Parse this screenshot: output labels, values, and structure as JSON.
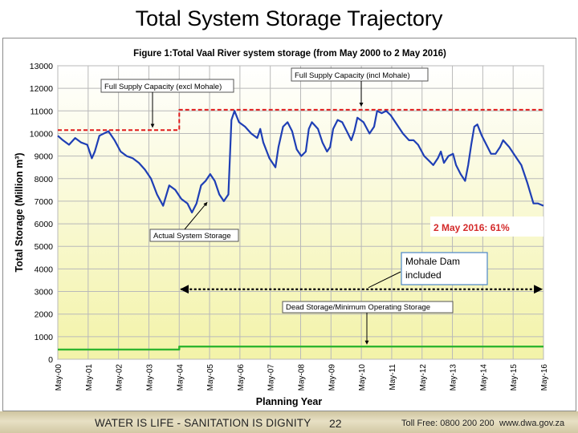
{
  "slide": {
    "title": "Total System Storage Trajectory",
    "footer": {
      "slogan": "WATER IS LIFE - SANITATION IS DIGNITY",
      "page_number": "22",
      "toll_free": "Toll Free: 0800 200 200",
      "website": "www.dwa.gov.za"
    }
  },
  "chart_data": {
    "type": "line",
    "title": "Figure 1:Total Vaal River system storage (from May 2000 to 2 May 2016)",
    "xlabel": "Planning Year",
    "ylabel": "Total  Storage (Million m³)",
    "ylim": [
      0,
      13000
    ],
    "yticks": [
      0,
      1000,
      2000,
      3000,
      4000,
      5000,
      6000,
      7000,
      8000,
      9000,
      10000,
      11000,
      12000,
      13000
    ],
    "xlim": [
      2000.33,
      2016.33
    ],
    "xticks": [
      {
        "x": 2000.33,
        "label": "May-00"
      },
      {
        "x": 2001.33,
        "label": "May-01"
      },
      {
        "x": 2002.33,
        "label": "May-02"
      },
      {
        "x": 2003.33,
        "label": "May-03"
      },
      {
        "x": 2004.33,
        "label": "May-04"
      },
      {
        "x": 2005.33,
        "label": "May-05"
      },
      {
        "x": 2006.33,
        "label": "May-06"
      },
      {
        "x": 2007.33,
        "label": "May-07"
      },
      {
        "x": 2008.33,
        "label": "May-08"
      },
      {
        "x": 2009.33,
        "label": "May-09"
      },
      {
        "x": 2010.33,
        "label": "May-10"
      },
      {
        "x": 2011.33,
        "label": "May-11"
      },
      {
        "x": 2012.33,
        "label": "May-12"
      },
      {
        "x": 2013.33,
        "label": "May-13"
      },
      {
        "x": 2014.33,
        "label": "May-14"
      },
      {
        "x": 2015.33,
        "label": "May-15"
      },
      {
        "x": 2016.33,
        "label": "May-16"
      }
    ],
    "grid": true,
    "colors": {
      "storage": "#1f3fb5",
      "capacity": "#e01b1b",
      "dead": "#2fb52f",
      "background_top": "#ffffff",
      "background_bottom": "#f3f3a8"
    },
    "series": [
      {
        "name": "Actual System Storage",
        "points": [
          [
            2000.33,
            9900
          ],
          [
            2000.5,
            9700
          ],
          [
            2000.7,
            9500
          ],
          [
            2000.9,
            9800
          ],
          [
            2001.1,
            9600
          ],
          [
            2001.3,
            9500
          ],
          [
            2001.45,
            8900
          ],
          [
            2001.55,
            9200
          ],
          [
            2001.7,
            9900
          ],
          [
            2002.0,
            10100
          ],
          [
            2002.2,
            9700
          ],
          [
            2002.4,
            9200
          ],
          [
            2002.6,
            9000
          ],
          [
            2002.8,
            8900
          ],
          [
            2003.0,
            8700
          ],
          [
            2003.2,
            8400
          ],
          [
            2003.4,
            8000
          ],
          [
            2003.6,
            7300
          ],
          [
            2003.8,
            6800
          ],
          [
            2004.0,
            7700
          ],
          [
            2004.2,
            7500
          ],
          [
            2004.4,
            7100
          ],
          [
            2004.6,
            6900
          ],
          [
            2004.75,
            6500
          ],
          [
            2004.9,
            6900
          ],
          [
            2005.05,
            7700
          ],
          [
            2005.2,
            7900
          ],
          [
            2005.35,
            8200
          ],
          [
            2005.5,
            7900
          ],
          [
            2005.65,
            7300
          ],
          [
            2005.8,
            7000
          ],
          [
            2005.95,
            7300
          ],
          [
            2006.05,
            10600
          ],
          [
            2006.15,
            11000
          ],
          [
            2006.3,
            10500
          ],
          [
            2006.5,
            10300
          ],
          [
            2006.7,
            10000
          ],
          [
            2006.9,
            9800
          ],
          [
            2007.0,
            10200
          ],
          [
            2007.1,
            9600
          ],
          [
            2007.3,
            8900
          ],
          [
            2007.5,
            8500
          ],
          [
            2007.6,
            9400
          ],
          [
            2007.75,
            10300
          ],
          [
            2007.9,
            10500
          ],
          [
            2008.05,
            10100
          ],
          [
            2008.2,
            9300
          ],
          [
            2008.35,
            9000
          ],
          [
            2008.5,
            9200
          ],
          [
            2008.6,
            10200
          ],
          [
            2008.7,
            10500
          ],
          [
            2008.9,
            10200
          ],
          [
            2009.05,
            9600
          ],
          [
            2009.2,
            9200
          ],
          [
            2009.3,
            9400
          ],
          [
            2009.4,
            10200
          ],
          [
            2009.55,
            10600
          ],
          [
            2009.7,
            10500
          ],
          [
            2009.85,
            10100
          ],
          [
            2010.0,
            9700
          ],
          [
            2010.1,
            10100
          ],
          [
            2010.2,
            10700
          ],
          [
            2010.4,
            10500
          ],
          [
            2010.6,
            10000
          ],
          [
            2010.75,
            10300
          ],
          [
            2010.85,
            11000
          ],
          [
            2011.0,
            10900
          ],
          [
            2011.15,
            11000
          ],
          [
            2011.3,
            10800
          ],
          [
            2011.5,
            10400
          ],
          [
            2011.7,
            10000
          ],
          [
            2011.9,
            9700
          ],
          [
            2012.05,
            9700
          ],
          [
            2012.2,
            9500
          ],
          [
            2012.4,
            9000
          ],
          [
            2012.55,
            8800
          ],
          [
            2012.7,
            8600
          ],
          [
            2012.85,
            8900
          ],
          [
            2012.95,
            9200
          ],
          [
            2013.05,
            8700
          ],
          [
            2013.2,
            9000
          ],
          [
            2013.35,
            9100
          ],
          [
            2013.45,
            8600
          ],
          [
            2013.6,
            8200
          ],
          [
            2013.75,
            7900
          ],
          [
            2013.85,
            8600
          ],
          [
            2013.95,
            9500
          ],
          [
            2014.05,
            10300
          ],
          [
            2014.15,
            10400
          ],
          [
            2014.3,
            9900
          ],
          [
            2014.45,
            9500
          ],
          [
            2014.6,
            9100
          ],
          [
            2014.75,
            9100
          ],
          [
            2014.9,
            9400
          ],
          [
            2015.0,
            9700
          ],
          [
            2015.2,
            9400
          ],
          [
            2015.4,
            9000
          ],
          [
            2015.6,
            8600
          ],
          [
            2015.8,
            7800
          ],
          [
            2016.0,
            6900
          ],
          [
            2016.15,
            6900
          ],
          [
            2016.33,
            6800
          ]
        ]
      },
      {
        "name": "Full Supply Capacity",
        "points": [
          [
            2000.33,
            10150
          ],
          [
            2004.33,
            10150
          ],
          [
            2004.33,
            11050
          ],
          [
            2016.33,
            11050
          ]
        ]
      },
      {
        "name": "Dead Storage/Minimum Operating Storage",
        "points": [
          [
            2000.33,
            430
          ],
          [
            2004.33,
            430
          ],
          [
            2004.33,
            560
          ],
          [
            2016.33,
            560
          ]
        ]
      }
    ],
    "annotations": {
      "fsc_excl": "Full Supply  Capacity  (excl Mohale)",
      "fsc_incl": "Full Supply  Capacity  (incl Mohale)",
      "actual": "Actual  System Storage",
      "dead": "Dead Storage/Minimum  Operating  Storage",
      "mohale_line1": "Mohale Dam",
      "mohale_line2": "included",
      "status": "2 May 2016: 61%"
    },
    "mohale_span": [
      2004.33,
      2016.33
    ],
    "mohale_level": 3100
  }
}
